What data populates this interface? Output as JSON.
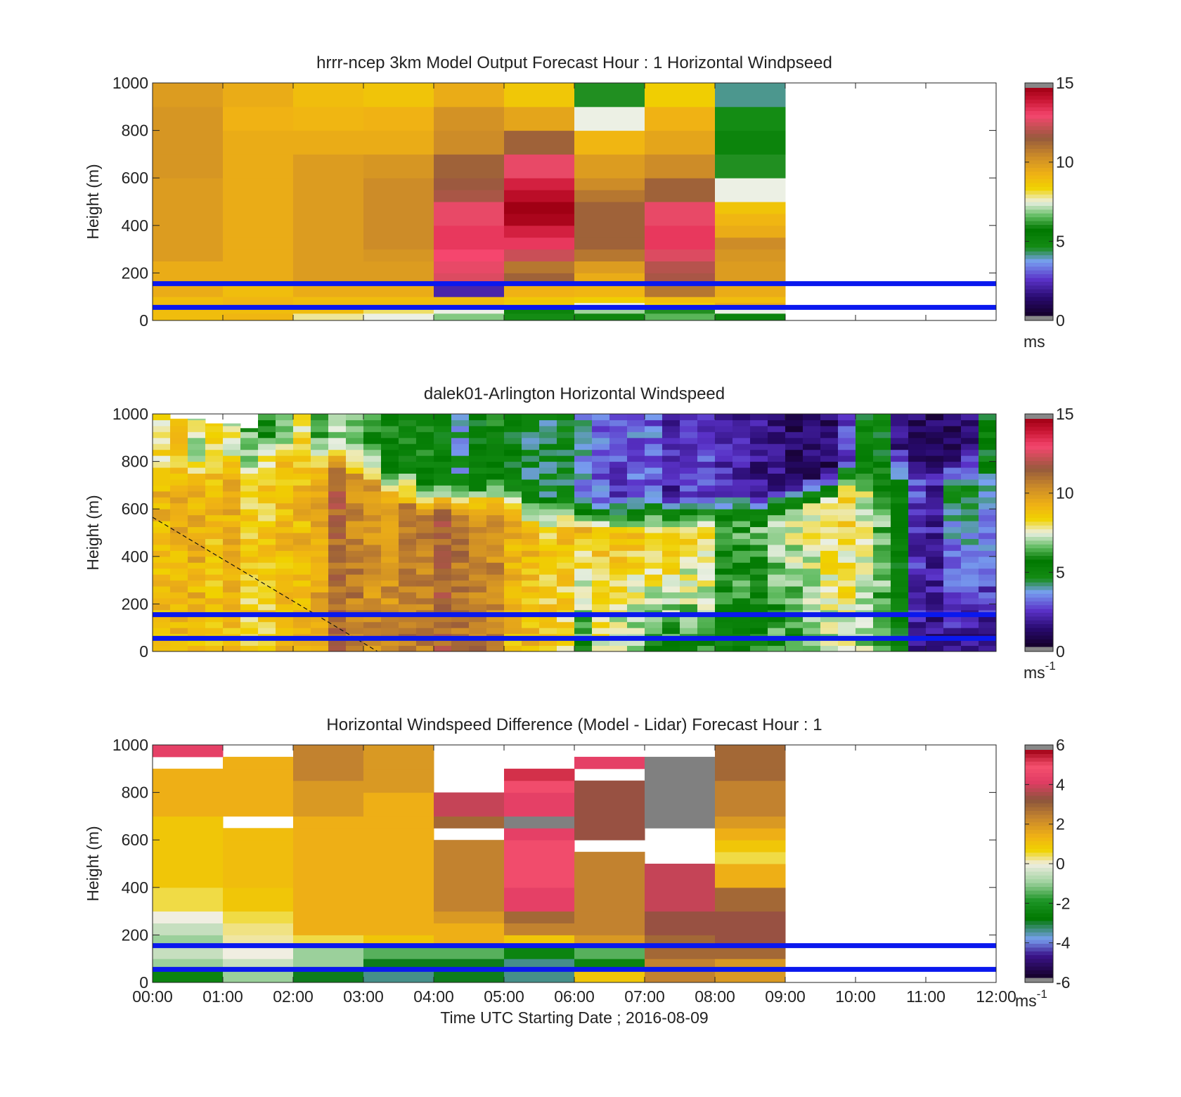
{
  "figure": {
    "xlabel": "Time UTC  Starting Date ; 2016-08-09",
    "x_ticks": [
      "00:00",
      "01:00",
      "02:00",
      "03:00",
      "04:00",
      "05:00",
      "06:00",
      "07:00",
      "08:00",
      "09:00",
      "10:00",
      "11:00",
      "12:00"
    ],
    "y_ticks": [
      "0",
      "200",
      "400",
      "600",
      "800",
      "1000"
    ]
  },
  "chart_data": [
    {
      "type": "heatmap",
      "title": "hrrr-ncep 3km Model Output   Forecast Hour : 1 Horizontal Windpseed",
      "ylabel": "Height (m)",
      "xlim": [
        0,
        12
      ],
      "ylim": [
        0,
        1000
      ],
      "x_time_labels": [
        "00:00",
        "01:00",
        "02:00",
        "03:00",
        "04:00",
        "05:00",
        "06:00",
        "07:00",
        "08:00",
        "09:00",
        "10:00",
        "11:00",
        "12:00"
      ],
      "colorbar": {
        "min": 0,
        "max": 15,
        "ticks": [
          "0",
          "5",
          "10",
          "15"
        ],
        "unit": "ms",
        "unit_sup": ""
      },
      "reference_lines_m": [
        55,
        155
      ],
      "column_hours": [
        0,
        1,
        2,
        3,
        4,
        5,
        6,
        7,
        8
      ],
      "row_edges_m": [
        0,
        30,
        50,
        75,
        100,
        150,
        200,
        250,
        300,
        350,
        400,
        450,
        500,
        550,
        600,
        700,
        800,
        900,
        1000
      ],
      "values_ms": [
        [
          9.0,
          9.2,
          7.8,
          7.5,
          6.8,
          4.5,
          4.8,
          6.5,
          5.0
        ],
        [
          9.0,
          9.0,
          9.0,
          8.0,
          7.5,
          5.0,
          7.0,
          6.0,
          7.5
        ],
        [
          9.0,
          9.2,
          9.0,
          9.0,
          9.0,
          8.5,
          7.5,
          8.5,
          9.5
        ],
        [
          9.0,
          9.2,
          9.0,
          9.0,
          9.0,
          8.7,
          8.5,
          9.0,
          9.0
        ],
        [
          9.5,
          9.0,
          9.5,
          9.5,
          2.0,
          9.3,
          9.2,
          11.0,
          9.5
        ],
        [
          9.5,
          9.5,
          10.0,
          10.0,
          12.8,
          11.5,
          9.5,
          12.0,
          10.0
        ],
        [
          9.5,
          9.5,
          10.0,
          10.0,
          13.0,
          11.0,
          10.0,
          12.2,
          10.0
        ],
        [
          10.0,
          9.5,
          10.0,
          10.2,
          13.2,
          12.5,
          11.0,
          12.8,
          10.2
        ],
        [
          10.0,
          9.5,
          10.0,
          10.5,
          13.5,
          13.5,
          11.5,
          13.5,
          10.5
        ],
        [
          10.0,
          9.5,
          10.0,
          10.5,
          13.5,
          14.0,
          11.5,
          13.5,
          9.5
        ],
        [
          10.0,
          9.5,
          10.0,
          10.5,
          13.0,
          14.8,
          11.5,
          13.0,
          9.2
        ],
        [
          10.0,
          9.5,
          10.0,
          10.5,
          13.0,
          15.0,
          11.5,
          13.0,
          8.8
        ],
        [
          10.0,
          9.5,
          10.0,
          10.5,
          12.0,
          14.5,
          11.0,
          11.5,
          7.5
        ],
        [
          10.0,
          9.5,
          10.0,
          10.5,
          11.8,
          14.0,
          10.5,
          11.5,
          7.5
        ],
        [
          10.2,
          9.5,
          10.0,
          10.2,
          11.5,
          13.0,
          10.0,
          10.5,
          6.0
        ],
        [
          10.2,
          9.5,
          9.5,
          9.5,
          10.5,
          11.5,
          9.2,
          9.7,
          5.0
        ],
        [
          10.2,
          9.3,
          9.2,
          9.3,
          10.3,
          9.7,
          7.5,
          9.3,
          4.5
        ],
        [
          10.0,
          9.5,
          9.0,
          8.8,
          9.5,
          8.7,
          6.0,
          8.5,
          4.0
        ]
      ]
    },
    {
      "type": "heatmap",
      "title": "dalek01-Arlington  Horizontal Windspeed",
      "ylabel": "Height (m)",
      "xlim": [
        0,
        12
      ],
      "ylim": [
        0,
        1000
      ],
      "x_time_labels": [
        "00:00",
        "01:00",
        "02:00",
        "03:00",
        "04:00",
        "05:00",
        "06:00",
        "07:00",
        "08:00",
        "09:00",
        "10:00",
        "11:00",
        "12:00"
      ],
      "colorbar": {
        "min": 0,
        "max": 15,
        "ticks": [
          "0",
          "5",
          "10",
          "15"
        ],
        "unit": "ms",
        "unit_sup": "-1"
      },
      "reference_lines_m": [
        55,
        155
      ],
      "dashed_line": {
        "x": [
          0,
          3.2
        ],
        "y": [
          565,
          0
        ]
      },
      "profile_hours": [
        0.0,
        0.25,
        0.5,
        0.75,
        1.0,
        1.25,
        1.5,
        1.75,
        2.0,
        2.25,
        2.5,
        2.75,
        3.0,
        3.25,
        3.5,
        3.75,
        4.0,
        4.25,
        4.5,
        4.75,
        5.0,
        5.25,
        5.5,
        5.75,
        6.0,
        6.25,
        6.5,
        6.75,
        7.0,
        7.25,
        7.5,
        7.75,
        8.0,
        8.25,
        8.5,
        8.75,
        9.0,
        9.25,
        9.5,
        9.75,
        10.0,
        10.25,
        10.5,
        10.75,
        11.0,
        11.25,
        11.5,
        11.75
      ],
      "top_m": [
        1000,
        980,
        980,
        960,
        960,
        940,
        1000,
        1000,
        1000,
        1000,
        1000,
        1000,
        1000,
        1000,
        1000,
        1000,
        1000,
        1000,
        1000,
        1000,
        1000,
        1000,
        1000,
        1000,
        1000,
        1000,
        1000,
        1000,
        1000,
        1000,
        1000,
        1000,
        1000,
        1000,
        1000,
        1000,
        1000,
        1000,
        1000,
        1000,
        1000,
        1000,
        1000,
        1000,
        1000,
        1000,
        1000,
        1000
      ],
      "speed_bottom_ms": [
        9.0,
        9.0,
        9.2,
        9.0,
        8.8,
        8.5,
        8.6,
        9.0,
        9.5,
        10.0,
        11.5,
        11.0,
        10.5,
        10.5,
        11.0,
        10.8,
        11.5,
        11.0,
        11.0,
        10.5,
        9.0,
        9.0,
        8.5,
        8.0,
        6.0,
        7.5,
        7.0,
        6.5,
        6.0,
        6.0,
        6.0,
        6.0,
        5.0,
        5.5,
        5.5,
        6.0,
        6.0,
        6.5,
        7.0,
        7.5,
        7.0,
        6.5,
        5.0,
        2.0,
        1.5,
        1.5,
        1.5,
        1.5
      ],
      "speed_mid_ms": [
        9.2,
        9.5,
        9.5,
        9.0,
        9.5,
        8.5,
        8.5,
        9.0,
        9.0,
        9.5,
        11.5,
        10.5,
        10.0,
        10.0,
        10.5,
        10.8,
        11.5,
        11.0,
        10.5,
        10.5,
        9.5,
        9.0,
        8.5,
        9.0,
        9.0,
        9.0,
        9.0,
        9.0,
        9.0,
        9.0,
        8.5,
        8.5,
        6.5,
        6.5,
        6.5,
        7.0,
        7.5,
        8.0,
        8.5,
        8.5,
        7.5,
        6.5,
        5.0,
        2.5,
        2.0,
        4.5,
        4.5,
        4.0
      ],
      "speed_top_ms": [
        8.0,
        8.5,
        7.5,
        8.5,
        7.5,
        6.5,
        6.0,
        7.0,
        8.0,
        6.5,
        7.0,
        7.0,
        6.0,
        5.5,
        5.5,
        5.5,
        5.0,
        4.0,
        5.0,
        5.5,
        5.0,
        4.5,
        4.5,
        4.5,
        3.5,
        3.0,
        2.5,
        3.0,
        3.0,
        2.0,
        2.5,
        2.5,
        2.0,
        2.0,
        1.5,
        1.5,
        1.0,
        1.0,
        1.0,
        2.5,
        5.0,
        5.0,
        1.5,
        1.0,
        1.0,
        0.8,
        1.5,
        5.0
      ],
      "transition_m": [
        650,
        650,
        650,
        700,
        700,
        700,
        750,
        750,
        750,
        720,
        720,
        700,
        680,
        620,
        600,
        560,
        560,
        560,
        560,
        560,
        540,
        500,
        500,
        500,
        500,
        480,
        480,
        480,
        480,
        480,
        500,
        500,
        520,
        520,
        520,
        540,
        560,
        580,
        600,
        650,
        650,
        650,
        700,
        700,
        700,
        680,
        680,
        650
      ]
    },
    {
      "type": "heatmap",
      "title": "Horizontal Windspeed Difference (Model - Lidar) Forecast Hour : 1",
      "ylabel": "Height (m)",
      "xlim": [
        0,
        12
      ],
      "ylim": [
        0,
        1000
      ],
      "x_time_labels": [
        "00:00",
        "01:00",
        "02:00",
        "03:00",
        "04:00",
        "05:00",
        "06:00",
        "07:00",
        "08:00",
        "09:00",
        "10:00",
        "11:00",
        "12:00"
      ],
      "colorbar": {
        "min": -6,
        "max": 6,
        "ticks": [
          "6",
          "4",
          "2",
          "0",
          "-2",
          "-4",
          "-6"
        ],
        "unit": "ms",
        "unit_sup": "-1"
      },
      "reference_lines_m": [
        55,
        155
      ],
      "column_hours": [
        0,
        1,
        2,
        3,
        4,
        5,
        6,
        7,
        8
      ],
      "row_edges_m": [
        0,
        50,
        100,
        150,
        200,
        250,
        300,
        400,
        500,
        550,
        600,
        650,
        700,
        800,
        850,
        900,
        950,
        1000
      ],
      "values_ms": [
        [
          -2.5,
          -1.0,
          -3.0,
          -3.5,
          -3.0,
          -3.5,
          1.0,
          2.5,
          2.0
        ],
        [
          -1.0,
          -0.5,
          -1.0,
          -3.0,
          -3.0,
          -3.5,
          -2.5,
          2.5,
          2.0
        ],
        [
          -0.5,
          0.0,
          -1.0,
          -1.5,
          -1.5,
          -2.5,
          -1.5,
          3.0,
          3.0
        ],
        [
          -1.0,
          0.2,
          0.5,
          1.0,
          1.5,
          1.0,
          2.0,
          3.0,
          3.5
        ],
        [
          -0.5,
          0.3,
          1.5,
          1.5,
          1.5,
          2.5,
          2.5,
          3.5,
          3.5
        ],
        [
          0.0,
          0.5,
          1.5,
          1.5,
          2.0,
          3.0,
          2.5,
          3.5,
          3.5
        ],
        [
          0.5,
          1.0,
          1.5,
          1.5,
          2.5,
          4.5,
          2.5,
          4.0,
          3.0
        ],
        [
          1.0,
          1.2,
          1.5,
          1.5,
          2.5,
          5.0,
          2.5,
          4.0,
          1.5
        ],
        [
          1.0,
          1.2,
          1.5,
          1.5,
          2.5,
          5.0,
          2.5,
          null,
          0.5
        ],
        [
          1.0,
          1.2,
          1.5,
          1.5,
          2.5,
          5.0,
          null,
          null,
          1.0
        ],
        [
          1.0,
          1.2,
          1.5,
          1.5,
          null,
          4.5,
          3.5,
          null,
          1.5
        ],
        [
          1.0,
          null,
          1.5,
          1.5,
          3.0,
          9.0,
          3.5,
          9.0,
          2.0
        ],
        [
          1.5,
          1.5,
          2.0,
          1.5,
          4.0,
          4.5,
          3.5,
          9.0,
          2.5
        ],
        [
          1.5,
          1.5,
          2.0,
          2.0,
          null,
          5.0,
          3.5,
          9.0,
          2.5
        ],
        [
          1.5,
          1.5,
          2.5,
          2.0,
          null,
          5.5,
          null,
          9.0,
          3.0
        ],
        [
          null,
          1.5,
          2.5,
          2.0,
          null,
          null,
          4.5,
          9.0,
          3.0
        ],
        [
          4.5,
          null,
          2.5,
          2.0,
          null,
          null,
          null,
          null,
          3.0
        ]
      ]
    }
  ]
}
